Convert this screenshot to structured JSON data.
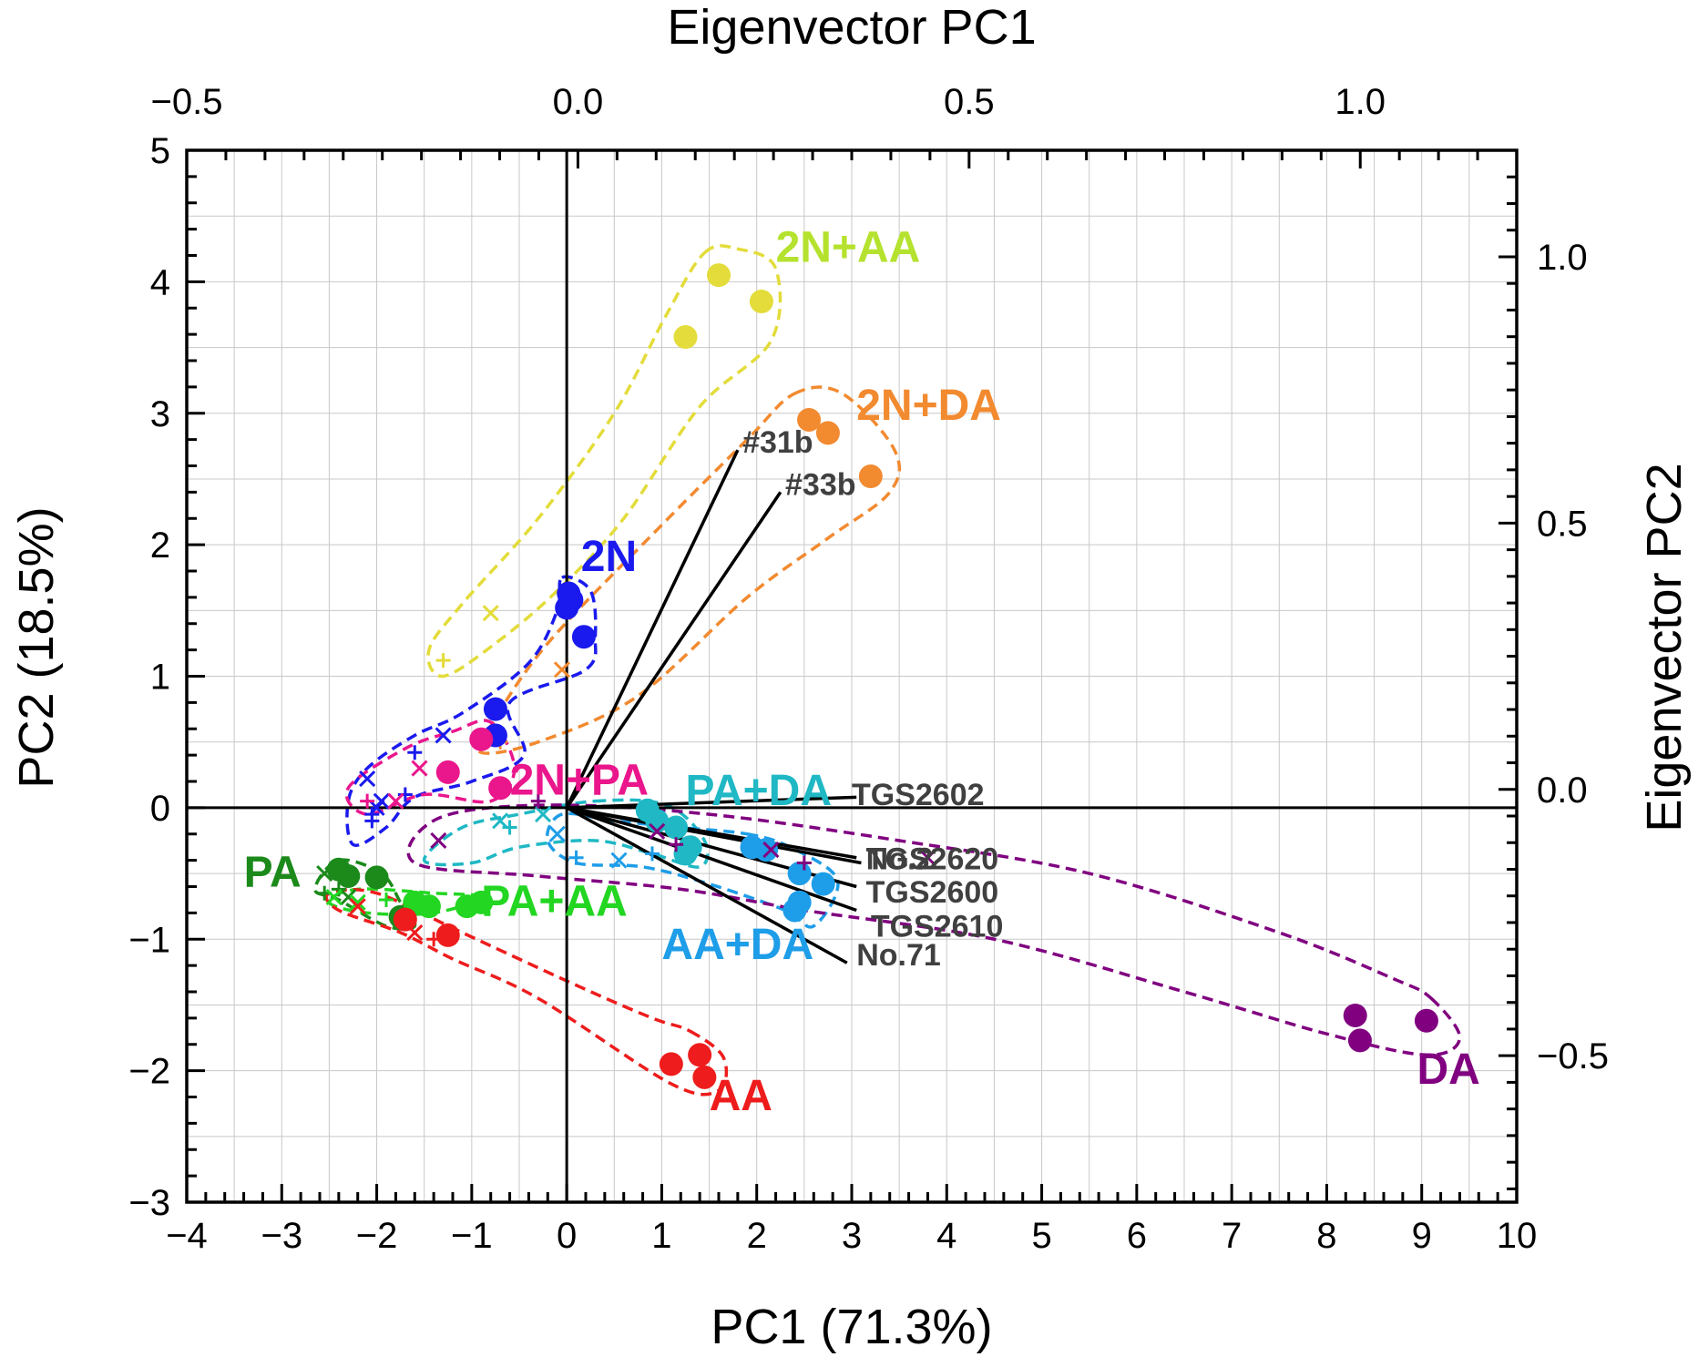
{
  "chart_data": {
    "type": "scatter",
    "subtype": "PCA biplot",
    "xlabel": "PC1 (71.3%)",
    "ylabel": "PC2 (18.5%)",
    "x2label": "Eigenvector PC1",
    "y2label": "Eigenvector PC2",
    "xlim": [
      -4,
      10
    ],
    "ylim": [
      -3,
      5
    ],
    "x_ticks": [
      -4,
      -3,
      -2,
      -1,
      0,
      1,
      2,
      3,
      4,
      5,
      6,
      7,
      8,
      9,
      10
    ],
    "x_tick_labels": [
      "−4",
      "−3",
      "−2",
      "−1",
      "0",
      "1",
      "2",
      "3",
      "4",
      "5",
      "6",
      "7",
      "8",
      "9",
      "10"
    ],
    "y_ticks": [
      -3,
      -2,
      -1,
      0,
      1,
      2,
      3,
      4,
      5
    ],
    "y_tick_labels": [
      "−3",
      "−2",
      "−1",
      "0",
      "1",
      "2",
      "3",
      "4",
      "5"
    ],
    "x2lim": [
      -0.5,
      1.2
    ],
    "x2_ticks": [
      -0.5,
      0.0,
      0.5,
      1.0
    ],
    "x2_tick_labels": [
      "−0.5",
      "0.0",
      "0.5",
      "1.0"
    ],
    "y2lim": [
      -0.775,
      1.2
    ],
    "y2_ticks": [
      -0.5,
      0.0,
      0.5,
      1.0
    ],
    "y2_tick_labels": [
      "−0.5",
      "0.0",
      "0.5",
      "1.0"
    ],
    "grid": true,
    "series": [
      {
        "name": "2N+AA",
        "color": "#e3dc3a",
        "points": [
          [
            1.6,
            4.05
          ],
          [
            2.05,
            3.85
          ],
          [
            1.25,
            3.58
          ]
        ],
        "small_points": [
          [
            -0.8,
            1.48
          ],
          [
            -1.3,
            1.12
          ]
        ],
        "hull": [
          [
            1.45,
            4.22
          ],
          [
            1.8,
            4.25
          ],
          [
            2.2,
            4.1
          ],
          [
            2.15,
            3.55
          ],
          [
            1.4,
            3.05
          ],
          [
            0.6,
            2.2
          ],
          [
            -0.1,
            1.65
          ],
          [
            -0.75,
            1.25
          ],
          [
            -1.3,
            1.0
          ],
          [
            -1.45,
            1.2
          ],
          [
            -1.1,
            1.55
          ],
          [
            -0.3,
            2.2
          ],
          [
            0.5,
            3.0
          ],
          [
            1.05,
            3.75
          ]
        ]
      },
      {
        "name": "2N+DA",
        "color": "#f28a30",
        "points": [
          [
            2.55,
            2.95
          ],
          [
            2.75,
            2.85
          ],
          [
            3.2,
            2.52
          ]
        ],
        "small_points": [
          [
            -0.05,
            1.05
          ],
          [
            -0.7,
            0.5
          ]
        ],
        "hull": [
          [
            2.4,
            3.15
          ],
          [
            2.9,
            3.15
          ],
          [
            3.45,
            2.72
          ],
          [
            3.4,
            2.4
          ],
          [
            2.75,
            2.05
          ],
          [
            1.9,
            1.6
          ],
          [
            0.75,
            0.85
          ],
          [
            -0.3,
            0.5
          ],
          [
            -0.9,
            0.42
          ],
          [
            -0.8,
            0.62
          ],
          [
            -0.2,
            1.25
          ],
          [
            1.0,
            2.15
          ],
          [
            1.9,
            2.8
          ]
        ]
      },
      {
        "name": "2N",
        "color": "#1a1aee",
        "points": [
          [
            0.02,
            1.63
          ],
          [
            0.05,
            1.58
          ],
          [
            0.0,
            1.52
          ],
          [
            0.18,
            1.3
          ],
          [
            -0.75,
            0.75
          ],
          [
            -0.75,
            0.55
          ]
        ],
        "small_points": [
          [
            -1.3,
            0.55
          ],
          [
            -1.6,
            0.42
          ],
          [
            -2.1,
            0.22
          ],
          [
            -1.7,
            0.1
          ],
          [
            -1.95,
            0.05
          ],
          [
            -2.05,
            -0.05
          ],
          [
            -2.0,
            0.0
          ],
          [
            -2.05,
            -0.1
          ]
        ],
        "hull": [
          [
            -0.05,
            1.75
          ],
          [
            0.25,
            1.65
          ],
          [
            0.3,
            1.3
          ],
          [
            0.2,
            1.05
          ],
          [
            -0.6,
            0.8
          ],
          [
            -0.45,
            0.4
          ],
          [
            -1.0,
            0.2
          ],
          [
            -1.6,
            0.08
          ],
          [
            -1.9,
            -0.15
          ],
          [
            -2.25,
            -0.28
          ],
          [
            -2.3,
            0.05
          ],
          [
            -2.1,
            0.3
          ],
          [
            -1.6,
            0.55
          ],
          [
            -1.1,
            0.72
          ],
          [
            -0.4,
            1.1
          ],
          [
            -0.1,
            1.5
          ]
        ]
      },
      {
        "name": "2N+PA",
        "color": "#ea168c",
        "points": [
          [
            -0.9,
            0.52
          ],
          [
            -1.25,
            0.27
          ],
          [
            -0.7,
            0.15
          ]
        ],
        "small_points": [
          [
            -1.55,
            0.3
          ],
          [
            -2.1,
            0.05
          ],
          [
            -1.8,
            0.05
          ]
        ],
        "hull": [
          [
            -0.8,
            0.65
          ],
          [
            -0.55,
            0.3
          ],
          [
            -0.8,
            0.05
          ],
          [
            -1.5,
            0.1
          ],
          [
            -2.1,
            -0.05
          ],
          [
            -2.3,
            0.15
          ],
          [
            -1.7,
            0.45
          ],
          [
            -1.2,
            0.58
          ]
        ]
      },
      {
        "name": "PA+DA",
        "color": "#1fb8c4",
        "points": [
          [
            0.85,
            -0.02
          ],
          [
            1.15,
            -0.15
          ],
          [
            1.3,
            -0.3
          ],
          [
            1.25,
            -0.35
          ],
          [
            0.95,
            -0.1
          ]
        ],
        "small_points": [
          [
            -0.7,
            -0.1
          ],
          [
            -0.6,
            -0.15
          ],
          [
            -0.25,
            -0.05
          ]
        ],
        "hull": [
          [
            0.3,
            0.05
          ],
          [
            1.05,
            0.02
          ],
          [
            1.45,
            -0.25
          ],
          [
            1.4,
            -0.45
          ],
          [
            0.9,
            -0.35
          ],
          [
            0.3,
            -0.25
          ],
          [
            -0.5,
            -0.3
          ],
          [
            -1.0,
            -0.42
          ],
          [
            -1.5,
            -0.4
          ],
          [
            -1.1,
            -0.15
          ],
          [
            -0.5,
            -0.05
          ]
        ]
      },
      {
        "name": "AA+DA",
        "color": "#1e9de8",
        "points": [
          [
            1.95,
            -0.3
          ],
          [
            2.1,
            -0.32
          ],
          [
            2.45,
            -0.5
          ],
          [
            2.7,
            -0.58
          ],
          [
            2.45,
            -0.72
          ],
          [
            2.4,
            -0.78
          ]
        ],
        "small_points": [
          [
            -0.1,
            -0.2
          ],
          [
            0.1,
            -0.38
          ],
          [
            0.55,
            -0.4
          ],
          [
            0.9,
            -0.35
          ]
        ],
        "hull": [
          [
            1.9,
            -0.2
          ],
          [
            2.35,
            -0.3
          ],
          [
            2.85,
            -0.55
          ],
          [
            2.6,
            -0.9
          ],
          [
            2.3,
            -0.78
          ],
          [
            1.5,
            -0.58
          ],
          [
            0.8,
            -0.45
          ],
          [
            0.1,
            -0.42
          ],
          [
            -0.2,
            -0.25
          ],
          [
            -0.05,
            -0.05
          ],
          [
            0.5,
            -0.1
          ],
          [
            1.2,
            -0.15
          ]
        ]
      },
      {
        "name": "DA",
        "color": "#800080",
        "points": [
          [
            8.3,
            -1.58
          ],
          [
            8.35,
            -1.77
          ],
          [
            9.05,
            -1.62
          ]
        ],
        "small_points": [
          [
            0.95,
            -0.18
          ],
          [
            1.15,
            -0.28
          ],
          [
            2.15,
            -0.32
          ],
          [
            2.5,
            -0.42
          ],
          [
            -1.35,
            -0.25
          ],
          [
            -0.3,
            0.05
          ],
          [
            3.8,
            -0.38
          ]
        ],
        "hull": [
          [
            9.1,
            -1.45
          ],
          [
            9.4,
            -1.75
          ],
          [
            9.05,
            -1.88
          ],
          [
            8.0,
            -1.72
          ],
          [
            6.5,
            -1.4
          ],
          [
            4.5,
            -1.0
          ],
          [
            2.5,
            -0.78
          ],
          [
            1.2,
            -0.62
          ],
          [
            -0.3,
            -0.52
          ],
          [
            -1.6,
            -0.42
          ],
          [
            -1.35,
            -0.08
          ],
          [
            -0.2,
            0.02
          ],
          [
            1.5,
            -0.05
          ],
          [
            3.5,
            -0.25
          ],
          [
            5.5,
            -0.5
          ],
          [
            7.5,
            -0.95
          ],
          [
            8.7,
            -1.3
          ]
        ]
      },
      {
        "name": "PA",
        "color": "#1b8a1b",
        "points": [
          [
            -2.4,
            -0.47
          ],
          [
            -2.3,
            -0.52
          ],
          [
            -2.0,
            -0.53
          ],
          [
            -1.75,
            -0.83
          ]
        ],
        "small_points": [
          [
            -2.55,
            -0.5
          ],
          [
            -2.55,
            -0.65
          ],
          [
            -2.3,
            -0.68
          ],
          [
            -2.4,
            -0.62
          ]
        ],
        "hull": [
          [
            -2.4,
            -0.4
          ],
          [
            -1.95,
            -0.5
          ],
          [
            -1.75,
            -0.72
          ],
          [
            -1.6,
            -0.9
          ],
          [
            -1.9,
            -0.9
          ],
          [
            -2.4,
            -0.7
          ],
          [
            -2.65,
            -0.62
          ]
        ]
      },
      {
        "name": "PA+AA",
        "color": "#22d622",
        "points": [
          [
            -1.45,
            -0.75
          ],
          [
            -1.05,
            -0.75
          ],
          [
            -0.9,
            -0.72
          ],
          [
            -1.6,
            -0.72
          ]
        ],
        "small_points": [
          [
            -2.2,
            -0.72
          ],
          [
            -1.9,
            -0.7
          ],
          [
            -2.45,
            -0.68
          ]
        ],
        "hull": [
          [
            -0.9,
            -0.68
          ],
          [
            -1.4,
            -0.65
          ],
          [
            -2.2,
            -0.62
          ],
          [
            -2.5,
            -0.72
          ],
          [
            -2.1,
            -0.8
          ],
          [
            -1.4,
            -0.8
          ]
        ]
      },
      {
        "name": "AA",
        "color": "#ee1c1c",
        "points": [
          [
            1.1,
            -1.95
          ],
          [
            1.4,
            -1.88
          ],
          [
            1.45,
            -2.05
          ],
          [
            -1.25,
            -0.97
          ],
          [
            -1.7,
            -0.85
          ]
        ],
        "small_points": [
          [
            -1.6,
            -0.95
          ],
          [
            -1.4,
            -1.0
          ],
          [
            -2.2,
            -0.75
          ]
        ],
        "hull": [
          [
            1.3,
            -1.7
          ],
          [
            1.65,
            -1.9
          ],
          [
            1.6,
            -2.15
          ],
          [
            1.1,
            -2.1
          ],
          [
            -0.3,
            -1.45
          ],
          [
            -1.2,
            -1.15
          ],
          [
            -1.75,
            -0.95
          ],
          [
            -2.4,
            -0.78
          ],
          [
            -2.5,
            -0.65
          ],
          [
            -2.0,
            -0.65
          ],
          [
            -1.1,
            -0.95
          ],
          [
            0.1,
            -1.35
          ],
          [
            0.9,
            -1.6
          ]
        ]
      }
    ],
    "loadings": [
      {
        "name": "#31b",
        "end": [
          1.8,
          2.72
        ]
      },
      {
        "name": "#33b",
        "end": [
          2.25,
          2.4
        ]
      },
      {
        "name": "TGS2602",
        "end": [
          3.05,
          0.08
        ]
      },
      {
        "name": "TGS2620",
        "end": [
          3.05,
          -0.38
        ]
      },
      {
        "name": "No.2",
        "end": [
          3.1,
          -0.42
        ]
      },
      {
        "name": "TGS2600",
        "end": [
          3.05,
          -0.6
        ]
      },
      {
        "name": "TGS2610",
        "end": [
          3.05,
          -0.78
        ]
      },
      {
        "name": "No.71",
        "end": [
          2.95,
          -1.18
        ]
      }
    ],
    "group_labels": [
      {
        "text": "2N+AA",
        "color": "#b5e22e",
        "at": [
          2.2,
          4.15
        ]
      },
      {
        "text": "2N+DA",
        "color": "#f28a30",
        "at": [
          3.05,
          2.95
        ]
      },
      {
        "text": "2N",
        "color": "#1a1aee",
        "at": [
          0.15,
          1.8
        ]
      },
      {
        "text": "2N+PA",
        "color": "#ea168c",
        "at": [
          -0.6,
          0.1
        ]
      },
      {
        "text": "PA+DA",
        "color": "#1fb8c4",
        "at": [
          1.25,
          0.02
        ]
      },
      {
        "text": "PA",
        "color": "#1b8a1b",
        "at": [
          -3.4,
          -0.6
        ]
      },
      {
        "text": "PA+AA",
        "color": "#22d622",
        "at": [
          -0.9,
          -0.82
        ]
      },
      {
        "text": "AA+DA",
        "color": "#1e9de8",
        "at": [
          1.0,
          -1.15
        ]
      },
      {
        "text": "AA",
        "color": "#ee1c1c",
        "at": [
          1.5,
          -2.3
        ]
      },
      {
        "text": "DA",
        "color": "#800080",
        "at": [
          8.95,
          -2.1
        ]
      }
    ],
    "sensor_labels": [
      {
        "text": "#31b",
        "at": [
          1.85,
          2.7
        ]
      },
      {
        "text": "#33b",
        "at": [
          2.3,
          2.38
        ]
      },
      {
        "text": "TGS2602",
        "at": [
          3.0,
          0.02
        ]
      },
      {
        "text": "TGS2620",
        "at": [
          3.15,
          -0.47
        ]
      },
      {
        "text": "No.2",
        "at": [
          3.15,
          -0.47
        ]
      },
      {
        "text": "TGS2600",
        "at": [
          3.15,
          -0.72
        ]
      },
      {
        "text": "TGS2610",
        "at": [
          3.2,
          -0.98
        ]
      },
      {
        "text": "No.71",
        "at": [
          3.05,
          -1.2
        ]
      }
    ]
  }
}
